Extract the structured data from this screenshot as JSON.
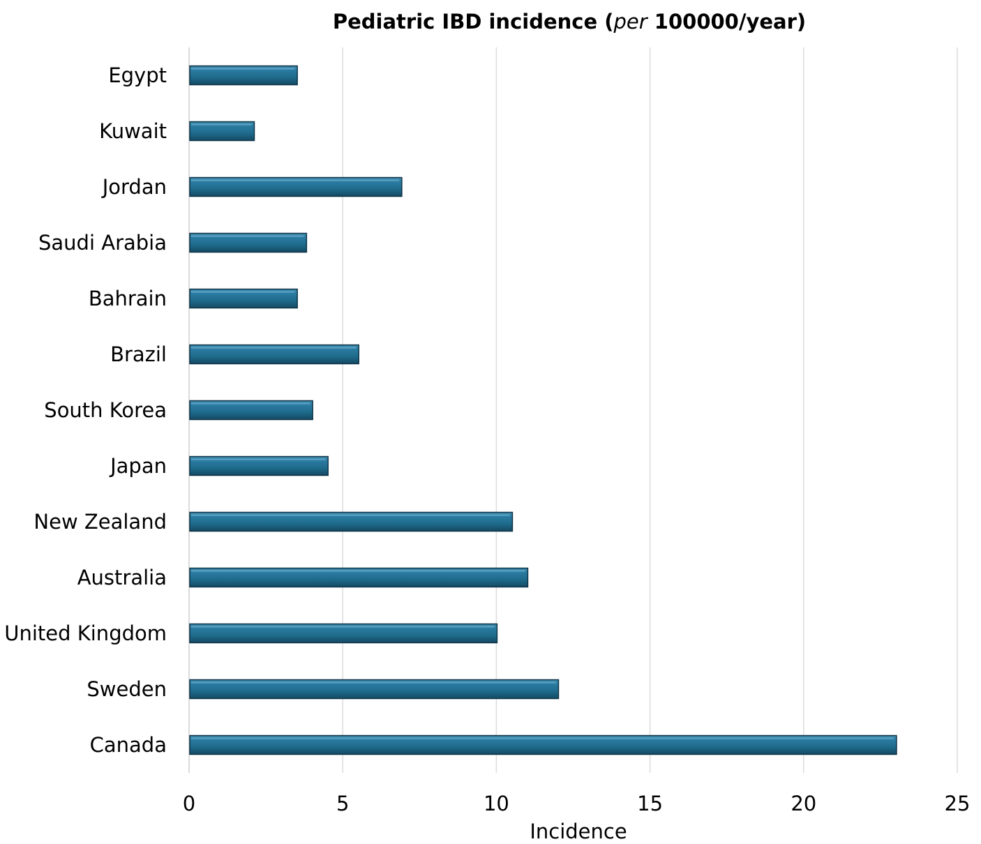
{
  "chart_data": {
    "type": "bar",
    "orientation": "horizontal",
    "title": {
      "prefix": "Pediatric IBD incidence (",
      "italic": "per",
      "suffix": " 100000/year)"
    },
    "xlabel": "Incidence",
    "ylabel": "",
    "xlim": [
      0,
      25
    ],
    "xticks": [
      0,
      5,
      10,
      15,
      20,
      25
    ],
    "grid": "vertical",
    "legend": "none",
    "bar_color": "#1f6b8c",
    "categories": [
      "Egypt",
      "Kuwait",
      "Jordan",
      "Saudi Arabia",
      "Bahrain",
      "Brazil",
      "South Korea",
      "Japan",
      "New Zealand",
      "Australia",
      "United Kingdom",
      "Sweden",
      "Canada"
    ],
    "values": [
      3.5,
      2.1,
      6.9,
      3.8,
      3.5,
      5.5,
      4.0,
      4.5,
      10.5,
      11.0,
      10.0,
      12.0,
      23.0
    ]
  }
}
